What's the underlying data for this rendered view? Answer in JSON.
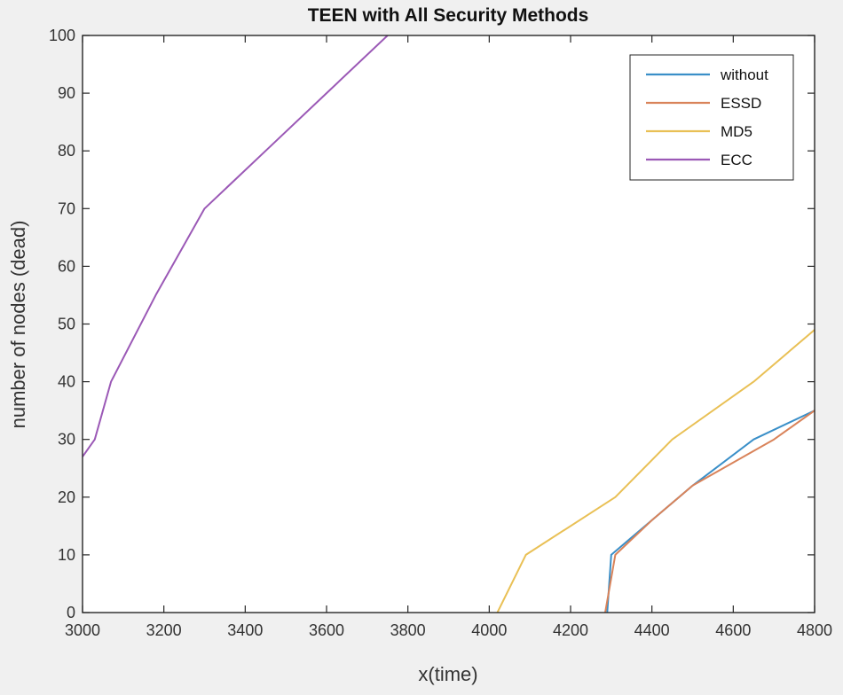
{
  "chart_data": {
    "type": "line",
    "title": "TEEN with All Security Methods",
    "xlabel": "x(time)",
    "ylabel": "number of nodes (dead)",
    "xlim": [
      3000,
      4800
    ],
    "ylim": [
      0,
      100
    ],
    "xticks": [
      3000,
      3200,
      3400,
      3600,
      3800,
      4000,
      4200,
      4400,
      4600,
      4800
    ],
    "yticks": [
      0,
      10,
      20,
      30,
      40,
      50,
      60,
      70,
      80,
      90,
      100
    ],
    "grid": false,
    "legend_position": "top-right",
    "series": [
      {
        "name": "without",
        "color": "#3a8fc8",
        "points": [
          [
            4290,
            0
          ],
          [
            4300,
            10
          ],
          [
            4400,
            16
          ],
          [
            4500,
            22
          ],
          [
            4650,
            30
          ],
          [
            4800,
            35
          ]
        ]
      },
      {
        "name": "ESSD",
        "color": "#d9835a",
        "points": [
          [
            4285,
            0
          ],
          [
            4310,
            10
          ],
          [
            4400,
            16
          ],
          [
            4500,
            22
          ],
          [
            4700,
            30
          ],
          [
            4800,
            35
          ]
        ]
      },
      {
        "name": "MD5",
        "color": "#e9c055",
        "points": [
          [
            4020,
            0
          ],
          [
            4090,
            10
          ],
          [
            4310,
            20
          ],
          [
            4450,
            30
          ],
          [
            4650,
            40
          ],
          [
            4800,
            49
          ]
        ]
      },
      {
        "name": "ECC",
        "color": "#9b59b6",
        "points": [
          [
            3000,
            27
          ],
          [
            3030,
            30
          ],
          [
            3070,
            40
          ],
          [
            3180,
            55
          ],
          [
            3300,
            70
          ],
          [
            3450,
            80
          ],
          [
            3600,
            90
          ],
          [
            3750,
            100
          ]
        ]
      }
    ]
  }
}
